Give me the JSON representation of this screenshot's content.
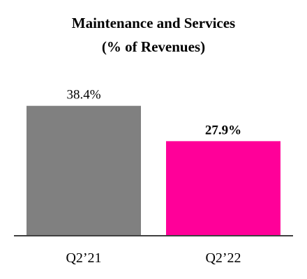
{
  "chart_data": {
    "type": "bar",
    "title": "Maintenance and Services",
    "subtitle": "(% of Revenues)",
    "categories": [
      "Q2’21",
      "Q2’22"
    ],
    "values": [
      38.4,
      27.9
    ],
    "data_labels": [
      "38.4%",
      "27.9%"
    ],
    "bold_labels": [
      false,
      true
    ],
    "colors": [
      "#808080",
      "#ff0099"
    ],
    "axis_color": "#404040",
    "ylim": [
      0,
      40
    ],
    "grid": false,
    "xlabel": "",
    "ylabel": ""
  }
}
